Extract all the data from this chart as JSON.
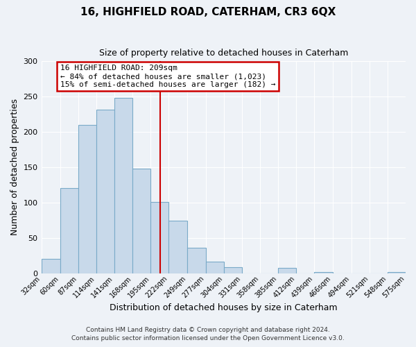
{
  "title": "16, HIGHFIELD ROAD, CATERHAM, CR3 6QX",
  "subtitle": "Size of property relative to detached houses in Caterham",
  "xlabel": "Distribution of detached houses by size in Caterham",
  "ylabel": "Number of detached properties",
  "bar_values": [
    20,
    121,
    210,
    232,
    248,
    148,
    101,
    74,
    36,
    16,
    9,
    0,
    0,
    8,
    0,
    2,
    0,
    0,
    0,
    2
  ],
  "bin_edges": [
    32,
    60,
    87,
    114,
    141,
    168,
    195,
    222,
    249,
    277,
    304,
    331,
    358,
    385,
    412,
    439,
    466,
    494,
    521,
    548,
    575
  ],
  "tick_labels": [
    "32sqm",
    "60sqm",
    "87sqm",
    "114sqm",
    "141sqm",
    "168sqm",
    "195sqm",
    "222sqm",
    "249sqm",
    "277sqm",
    "304sqm",
    "331sqm",
    "358sqm",
    "385sqm",
    "412sqm",
    "439sqm",
    "466sqm",
    "494sqm",
    "521sqm",
    "548sqm",
    "575sqm"
  ],
  "bar_color": "#c8d9ea",
  "bar_edge_color": "#7aaac8",
  "property_line_x": 209,
  "property_line_color": "#cc0000",
  "annotation_box_color": "#cc0000",
  "annotation_line1": "16 HIGHFIELD ROAD: 209sqm",
  "annotation_line2": "← 84% of detached houses are smaller (1,023)",
  "annotation_line3": "15% of semi-detached houses are larger (182) →",
  "ylim": [
    0,
    300
  ],
  "yticks": [
    0,
    50,
    100,
    150,
    200,
    250,
    300
  ],
  "footer1": "Contains HM Land Registry data © Crown copyright and database right 2024.",
  "footer2": "Contains public sector information licensed under the Open Government Licence v3.0.",
  "background_color": "#eef2f7",
  "plot_bg_color": "#eef2f7",
  "grid_color": "#ffffff",
  "title_fontsize": 11,
  "subtitle_fontsize": 9,
  "xlabel_fontsize": 9,
  "ylabel_fontsize": 9,
  "tick_fontsize": 7,
  "annotation_fontsize": 8,
  "footer_fontsize": 6.5
}
